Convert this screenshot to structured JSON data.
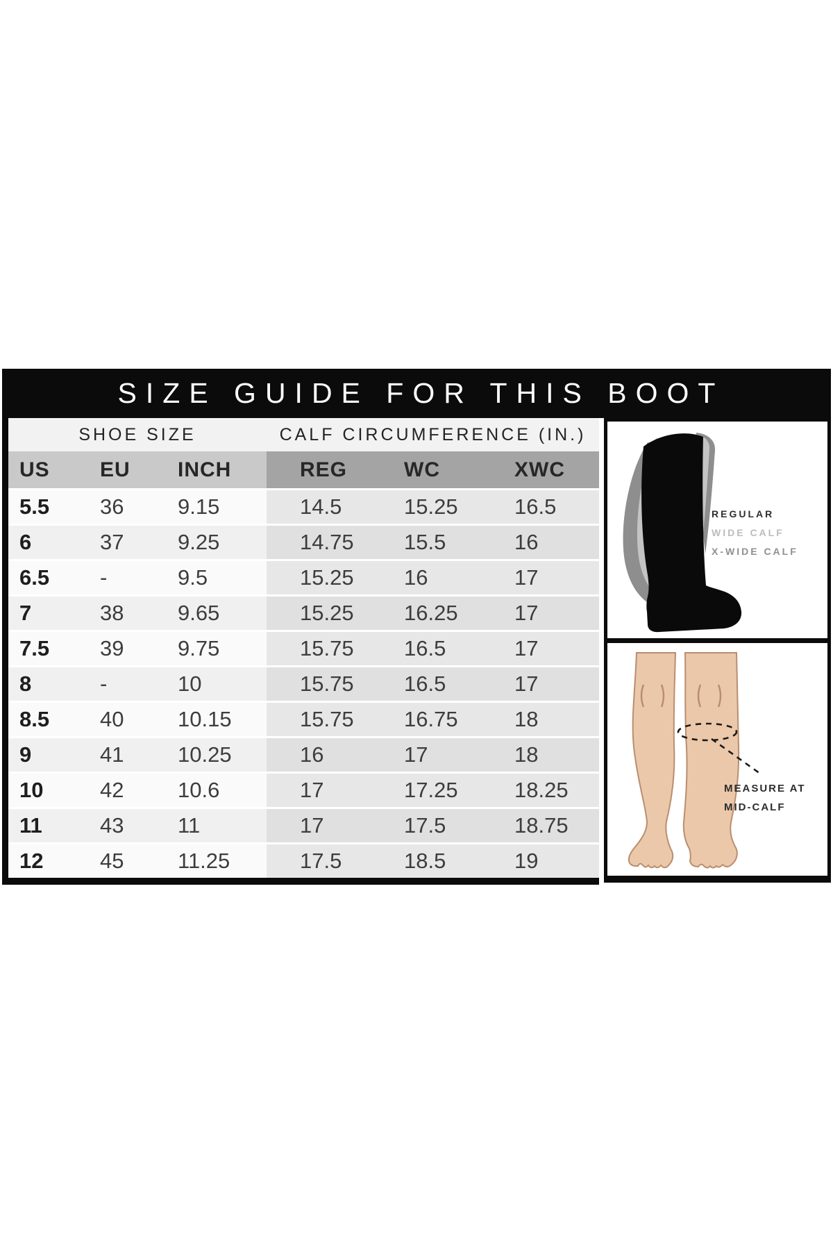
{
  "title": "SIZE GUIDE FOR THIS BOOT",
  "table": {
    "group_headers": [
      "SHOE SIZE",
      "CALF CIRCUMFERENCE (IN.)"
    ],
    "columns": [
      "US",
      "EU",
      "INCH",
      "REG",
      "WC",
      "XWC"
    ],
    "rows": [
      [
        "5.5",
        "36",
        "9.15",
        "14.5",
        "15.25",
        "16.5"
      ],
      [
        "6",
        "37",
        "9.25",
        "14.75",
        "15.5",
        "16"
      ],
      [
        "6.5",
        "-",
        "9.5",
        "15.25",
        "16",
        "17"
      ],
      [
        "7",
        "38",
        "9.65",
        "15.25",
        "16.25",
        "17"
      ],
      [
        "7.5",
        "39",
        "9.75",
        "15.75",
        "16.5",
        "17"
      ],
      [
        "8",
        "-",
        "10",
        "15.75",
        "16.5",
        "17"
      ],
      [
        "8.5",
        "40",
        "10.15",
        "15.75",
        "16.75",
        "18"
      ],
      [
        "9",
        "41",
        "10.25",
        "16",
        "17",
        "18"
      ],
      [
        "10",
        "42",
        "10.6",
        "17",
        "17.25",
        "18.25"
      ],
      [
        "11",
        "43",
        "11",
        "17",
        "17.5",
        "18.75"
      ],
      [
        "12",
        "45",
        "11.25",
        "17.5",
        "18.5",
        "19"
      ]
    ]
  },
  "boot_panel": {
    "labels": [
      {
        "text": "REGULAR",
        "color": "#2e2e2e"
      },
      {
        "text": "WIDE CALF",
        "color": "#bcbcbc"
      },
      {
        "text": "X-WIDE CALF",
        "color": "#8f8f8f"
      }
    ]
  },
  "legs_panel": {
    "note_line1": "MEASURE AT",
    "note_line2": "MID-CALF"
  },
  "colors": {
    "bar_black": "#0b0b0b",
    "subheader_left": "#c9c9c9",
    "subheader_right": "#a4a4a4",
    "calf_column_tint": "#e7e7e7",
    "skin": "#ecc8aa",
    "skin_outline": "#b98e6e",
    "wide_calf_gray": "#c4c4c4",
    "xwide_calf_gray": "#8e8e8e"
  },
  "chart_data": {
    "type": "table",
    "title": "SIZE GUIDE FOR THIS BOOT",
    "column_groups": [
      {
        "label": "SHOE SIZE",
        "columns": [
          "US",
          "EU",
          "INCH"
        ]
      },
      {
        "label": "CALF CIRCUMFERENCE (IN.)",
        "columns": [
          "REG",
          "WC",
          "XWC"
        ]
      }
    ],
    "columns": [
      "US",
      "EU",
      "INCH",
      "REG",
      "WC",
      "XWC"
    ],
    "rows": [
      [
        "5.5",
        "36",
        "9.15",
        "14.5",
        "15.25",
        "16.5"
      ],
      [
        "6",
        "37",
        "9.25",
        "14.75",
        "15.5",
        "16"
      ],
      [
        "6.5",
        "-",
        "9.5",
        "15.25",
        "16",
        "17"
      ],
      [
        "7",
        "38",
        "9.65",
        "15.25",
        "16.25",
        "17"
      ],
      [
        "7.5",
        "39",
        "9.75",
        "15.75",
        "16.5",
        "17"
      ],
      [
        "8",
        "-",
        "10",
        "15.75",
        "16.5",
        "17"
      ],
      [
        "8.5",
        "40",
        "10.15",
        "15.75",
        "16.75",
        "18"
      ],
      [
        "9",
        "41",
        "10.25",
        "16",
        "17",
        "18"
      ],
      [
        "10",
        "42",
        "10.6",
        "17",
        "17.25",
        "18.25"
      ],
      [
        "11",
        "43",
        "11",
        "17",
        "17.5",
        "18.75"
      ],
      [
        "12",
        "45",
        "11.25",
        "17.5",
        "18.5",
        "19"
      ]
    ],
    "annotations": [
      "REGULAR",
      "WIDE CALF",
      "X-WIDE CALF",
      "MEASURE AT MID-CALF"
    ]
  }
}
